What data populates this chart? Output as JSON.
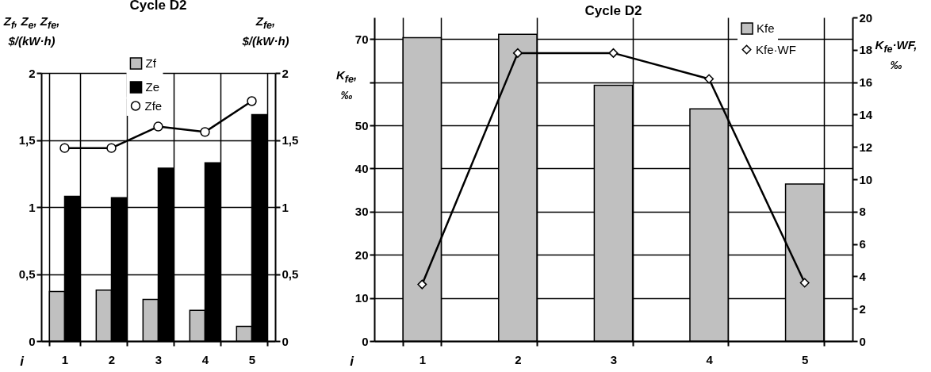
{
  "chart_data": [
    {
      "type": "bar",
      "title": "Cycle D2",
      "categories": [
        "1",
        "2",
        "3",
        "4",
        "5"
      ],
      "xlabel": "i",
      "ylabel": "Z$_{f}$, Z$_{e}$, Z$_{fe}$,\n$/(kW·h)",
      "y2label": "Z$_{fe}$,\n$/(kW·h)",
      "series": [
        {
          "name": "Zf",
          "color": "#c0c0c0",
          "values": [
            0.37,
            0.38,
            0.31,
            0.23,
            0.11
          ]
        },
        {
          "name": "Ze",
          "color": "#000000",
          "values": [
            1.08,
            1.07,
            1.29,
            1.33,
            1.69
          ]
        },
        {
          "name": "Zfe",
          "type": "line",
          "axis": "y2",
          "marker": "circle",
          "color": "#000000",
          "values": [
            1.44,
            1.44,
            1.6,
            1.56,
            1.79
          ]
        }
      ],
      "ylim": [
        0,
        2
      ],
      "yticks": [
        0,
        {
          "value": 0.5,
          "label": "0,5"
        },
        1,
        {
          "value": 1.5,
          "label": "1,5"
        },
        2
      ],
      "y2lim": [
        0,
        2
      ],
      "y2ticks": [
        0,
        {
          "value": 0.5,
          "label": "0,5"
        },
        1,
        {
          "value": 1.5,
          "label": "1,5"
        },
        2
      ],
      "grid": true,
      "legend": "top"
    },
    {
      "type": "bar",
      "title": "Cycle D2",
      "categories": [
        "1",
        "2",
        "3",
        "4",
        "5"
      ],
      "xlabel": "i",
      "ylabel": "K$_{fe}$,\n‰",
      "y2label": "K$_{fe}$·WF,\n‰",
      "series": [
        {
          "name": "Kfe",
          "color": "#c0c0c0",
          "values": [
            70.3,
            71.1,
            59.3,
            53.8,
            36.4
          ]
        },
        {
          "name": "Kfe·WF",
          "type": "line",
          "axis": "y2",
          "marker": "diamond",
          "color": "#000000",
          "values": [
            3.5,
            17.8,
            17.8,
            16.2,
            3.6
          ]
        }
      ],
      "ylim": [
        0,
        75
      ],
      "yticks": [
        0,
        10,
        20,
        30,
        40,
        50,
        {
          "value": 60,
          "label": null
        },
        70
      ],
      "y2lim": [
        0,
        20
      ],
      "y2ticks": [
        0,
        2,
        4,
        6,
        8,
        10,
        12,
        14,
        16,
        18,
        20
      ],
      "grid": true,
      "legend": "top right"
    }
  ]
}
